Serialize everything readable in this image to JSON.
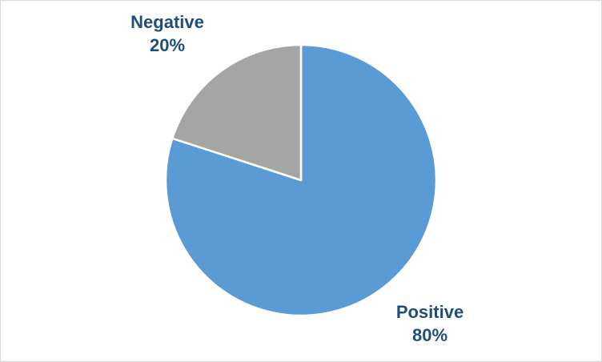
{
  "chart_data": {
    "type": "pie",
    "title": "",
    "start_angle_deg": 0,
    "direction": "clockwise",
    "slices": [
      {
        "name": "Positive",
        "value": 80,
        "value_label": "80%",
        "color": "#5b9bd5"
      },
      {
        "name": "Negative",
        "value": 20,
        "value_label": "20%",
        "color": "#a5a5a5"
      }
    ],
    "label_color": "#1f4e79",
    "slice_border_color": "#ffffff",
    "legend": "none"
  }
}
